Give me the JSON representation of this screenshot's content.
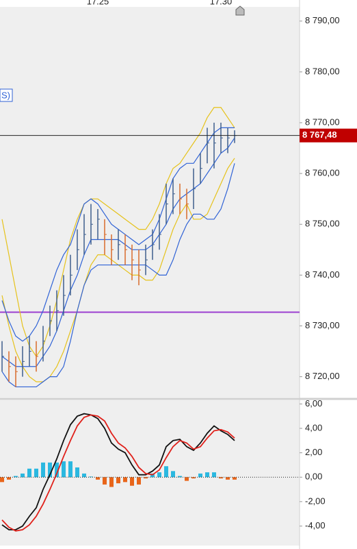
{
  "chart_data": [
    {
      "type": "ohlc",
      "label": "S)",
      "categories": [
        null,
        null,
        null,
        null,
        null,
        null,
        null,
        null,
        null,
        null,
        null,
        null,
        null,
        null,
        "17.25",
        null,
        null,
        null,
        null,
        null,
        null,
        null,
        null,
        null,
        null,
        null,
        null,
        null,
        null,
        null,
        null,
        null,
        "17.30",
        null,
        null
      ],
      "high": [
        8727,
        8725,
        8724,
        8726,
        8728,
        8727,
        8730,
        8734,
        8737,
        8740,
        8744,
        8749,
        8752,
        8754,
        8753,
        8751,
        8748,
        8749,
        8748,
        8746,
        8745,
        8746,
        8749,
        8752,
        8758,
        8759,
        8758,
        8757,
        8761,
        8764,
        8769,
        8770,
        8770,
        8769,
        8768.5
      ],
      "low": [
        8721,
        8719,
        8718,
        8720,
        8722,
        8721,
        8723,
        8728,
        8729,
        8732,
        8736,
        8741,
        8744,
        8746,
        8747,
        8744,
        8742,
        8743,
        8742,
        8739,
        8738,
        8740,
        8743,
        8745,
        8750,
        8752,
        8752,
        8751,
        8753,
        8758,
        8762,
        8761,
        8764,
        8764,
        8766
      ],
      "close": [
        8724,
        8722,
        8721,
        8723,
        8725,
        8724,
        8727,
        8731,
        8733,
        8736,
        8740,
        8745,
        8748,
        8750,
        8751,
        8748,
        8745,
        8746,
        8745,
        8743,
        8741,
        8743,
        8746,
        8748,
        8754,
        8756,
        8755,
        8754,
        8757,
        8761,
        8766,
        8766,
        8767,
        8767,
        8767.48
      ],
      "colors": {
        "up": "#3d5e8c",
        "down": "#d86a2a"
      },
      "series": [
        {
          "name": "yellow-upper",
          "color": "#e6c21a",
          "values": [
            8751,
            8744,
            8737,
            8730,
            8726,
            8724,
            8726,
            8730,
            8735,
            8741,
            8747,
            8751,
            8754,
            8755,
            8755,
            8754,
            8753,
            8752,
            8751,
            8750,
            8749,
            8749,
            8751,
            8754,
            8758,
            8761,
            8762,
            8764,
            8766,
            8768,
            8771,
            8773,
            8773,
            8771,
            8769
          ]
        },
        {
          "name": "yellow-lower",
          "color": "#e6c21a",
          "values": [
            8736,
            8730,
            8725,
            8722,
            8720,
            8719,
            8719,
            8720,
            8722,
            8725,
            8729,
            8733,
            8738,
            8742,
            8744,
            8744,
            8743,
            8742,
            8741,
            8740,
            8740,
            8739,
            8739,
            8741,
            8745,
            8749,
            8752,
            8754,
            8751,
            8751,
            8752,
            8755,
            8758,
            8761,
            8763
          ]
        },
        {
          "name": "blue-upper",
          "color": "#2f62d6",
          "values": [
            8735,
            8731,
            8728,
            8727,
            8728,
            8730,
            8733,
            8737,
            8741,
            8744,
            8746,
            8750,
            8754,
            8755,
            8754,
            8752,
            8750,
            8749,
            8748,
            8747,
            8746,
            8747,
            8748,
            8751,
            8755,
            8759,
            8761,
            8762,
            8762,
            8764,
            8766,
            8768,
            8769,
            8769,
            8769
          ]
        },
        {
          "name": "blue-middle",
          "color": "#2f62d6",
          "values": [
            8724,
            8723,
            8722,
            8722,
            8722,
            8722,
            8724,
            8726,
            8729,
            8733,
            8737,
            8740,
            8744,
            8747,
            8747,
            8747,
            8747,
            8747,
            8746,
            8745,
            8745,
            8745,
            8746,
            8748,
            8750,
            8753,
            8755,
            8756,
            8757,
            8758,
            8760,
            8762,
            8764,
            8765,
            8767
          ]
        },
        {
          "name": "blue-lower",
          "color": "#2f62d6",
          "values": [
            8721,
            8719,
            8718,
            8718,
            8718,
            8718,
            8719,
            8720,
            8720,
            8722,
            8727,
            8733,
            8738,
            8741,
            8742,
            8742,
            8742,
            8742,
            8742,
            8742,
            8742,
            8742,
            8741,
            8740,
            8740,
            8743,
            8747,
            8750,
            8752,
            8752,
            8751,
            8751,
            8753,
            8757,
            8762
          ]
        }
      ],
      "ylim": [
        8715.9,
        8792.8
      ],
      "yticks": [
        {
          "value": 8720,
          "label": "8 720,00"
        },
        {
          "value": 8730,
          "label": "8 730,00"
        },
        {
          "value": 8740,
          "label": "8 740,00"
        },
        {
          "value": 8750,
          "label": "8 750,00"
        },
        {
          "value": 8760,
          "label": "8 760,00"
        },
        {
          "value": 8770,
          "label": "8 770,00"
        },
        {
          "value": 8780,
          "label": "8 780,00"
        },
        {
          "value": 8790,
          "label": "8 790,00"
        }
      ],
      "price_line": {
        "value": 8767.48,
        "label": "8 767,48",
        "color": "#c00000"
      },
      "level_line": {
        "value": 8732.7,
        "color": "#9b3fd0"
      }
    },
    {
      "type": "macd",
      "series": [
        {
          "name": "macd",
          "color": "#111111",
          "values": [
            -3.9,
            -4.3,
            -4.3,
            -4.0,
            -3.2,
            -2.5,
            -1.0,
            0.2,
            1.5,
            3.0,
            4.3,
            5.0,
            5.2,
            5.1,
            4.8,
            4.0,
            2.8,
            2.3,
            2.0,
            1.0,
            0.2,
            0.2,
            0.5,
            1.0,
            2.5,
            3.0,
            3.1,
            2.5,
            2.2,
            2.8,
            3.6,
            4.2,
            3.8,
            3.5,
            3.0
          ]
        },
        {
          "name": "signal",
          "color": "#e0201a",
          "values": [
            -3.5,
            -4.1,
            -4.4,
            -4.3,
            -3.9,
            -3.2,
            -2.2,
            -1.0,
            0.3,
            1.7,
            3.0,
            4.2,
            4.9,
            5.1,
            5.0,
            4.6,
            3.6,
            2.8,
            2.4,
            1.7,
            0.8,
            0.3,
            0.2,
            0.6,
            1.6,
            2.5,
            3.0,
            2.8,
            2.3,
            2.5,
            3.2,
            3.8,
            3.9,
            3.7,
            3.2
          ]
        }
      ],
      "histogram": {
        "values": [
          -0.4,
          -0.2,
          0.1,
          0.3,
          0.7,
          0.7,
          1.2,
          1.2,
          1.2,
          1.3,
          1.3,
          0.8,
          0.3,
          0.05,
          -0.2,
          -0.6,
          -0.8,
          -0.5,
          -0.4,
          -0.7,
          -0.6,
          -0.1,
          0.3,
          0.4,
          0.9,
          0.5,
          0.1,
          -0.3,
          -0.1,
          0.3,
          0.4,
          0.4,
          -0.1,
          -0.2,
          -0.2
        ],
        "colors": {
          "up": "#2bb8e0",
          "down": "#e8651a"
        }
      },
      "baseline": 0,
      "ylim": [
        -5.6,
        6.3
      ],
      "yticks": [
        {
          "value": -4,
          "label": "-4,00"
        },
        {
          "value": -2,
          "label": "-2,00"
        },
        {
          "value": 0,
          "label": "0,00"
        },
        {
          "value": 2,
          "label": "2,00"
        },
        {
          "value": 4,
          "label": "4,00"
        },
        {
          "value": 6,
          "label": "6,00"
        }
      ]
    }
  ]
}
